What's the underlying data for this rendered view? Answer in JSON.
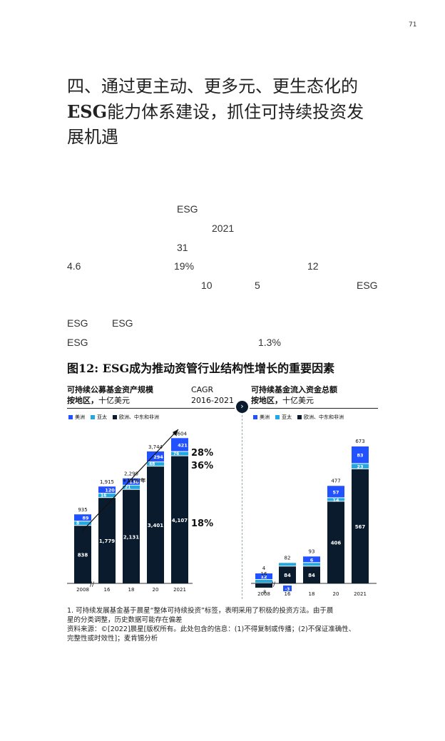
{
  "page_number": "71",
  "heading": {
    "line1": "四、通过更主动、更多元、更生态化的",
    "line2_bold": "ESG",
    "line2_rest": "能力体系建设，抓住可持续投资发",
    "line3": "展机遇"
  },
  "body_fragments": [
    "ESG",
    "2021",
    "31",
    "4.6",
    "19%",
    "12",
    "10",
    "5",
    "ESG",
    "ESG",
    "ESG",
    "ESG",
    "1.3%"
  ],
  "figure_title": "图12: ESG成为推动资管行业结构性增长的重要因素",
  "colors": {
    "americas": "#2251ff",
    "apac": "#23a9e1",
    "europe": "#0b1b2e"
  },
  "chart_data": [
    {
      "type": "bar",
      "stacked": true,
      "title_bold": "可持续公募基金资产规模",
      "title_bold2": "按地区，",
      "title_rest": "十亿美元",
      "cagr_label": "CAGR",
      "cagr_period": "2016-2021",
      "categories": [
        "2008",
        "16",
        "18",
        "20",
        "2021"
      ],
      "series": [
        {
          "name": "美洲",
          "values": [
            89,
            120,
            138,
            294,
            421
          ]
        },
        {
          "name": "亚太",
          "values": [
            8,
            16,
            21,
            48,
            76
          ]
        },
        {
          "name": "欧洲、中东和非洲",
          "values": [
            838,
            1779,
            2131,
            3401,
            4107
          ]
        }
      ],
      "totals": [
        935,
        1915,
        2290,
        3744,
        4604
      ],
      "labels": {
        "americas": [
          "89",
          "120",
          "138",
          "294",
          "421"
        ],
        "apac": [
          "8",
          "16",
          "21",
          "48",
          "76"
        ],
        "europe": [
          "838",
          "1,779",
          "2,131",
          "3,401",
          "4,107"
        ],
        "totals": [
          "935",
          "1,915",
          "2,290",
          "3,744",
          "4,604"
        ]
      },
      "cagr": [
        {
          "series": "美洲",
          "value": "28%"
        },
        {
          "series": "亚太",
          "value": "36%"
        },
        {
          "series": "欧洲、中东和非洲",
          "value": "18%"
        }
      ],
      "annotation": "+19%/年",
      "ylim": [
        0,
        5000
      ]
    },
    {
      "type": "bar",
      "stacked": true,
      "title_bold": "可持续基金流入资金总额",
      "title_bold2": "按地区，",
      "title_rest": "十亿美元",
      "categories": [
        "2008",
        "16",
        "18",
        "20",
        "2021"
      ],
      "series": [
        {
          "name": "美洲",
          "values": [
            12,
            -3,
            6,
            57,
            83
          ]
        },
        {
          "name": "亚太",
          "values": [
            0,
            1,
            3,
            14,
            23
          ]
        },
        {
          "name": "欧洲、中东和非洲",
          "values": [
            -8,
            84,
            84,
            406,
            567
          ]
        }
      ],
      "totals": [
        4,
        82,
        93,
        477,
        673
      ],
      "labels": {
        "americas": [
          "12",
          "-3",
          "6",
          "57",
          "83"
        ],
        "apac": [
          "0",
          "1",
          "3",
          "14",
          "23"
        ],
        "europe": [
          "-8",
          "84",
          "84",
          "406",
          "567"
        ],
        "totals": [
          "4",
          "82",
          "93",
          "477",
          "673"
        ],
        "extra": "16"
      },
      "ylim": [
        -20,
        700
      ]
    }
  ],
  "legend": [
    "美洲",
    "亚太",
    "欧洲、中东和非洲"
  ],
  "footnote": {
    "line1": "1.   可持续发展基金基于晨星“整体可持续投资”标签，表明采用了积极的投资方法。由于晨",
    "line2": "      星的分类调整，历史数据可能存在偏差",
    "line3": "资料来源：©[2022]晨星[版权所有。此处包含的信息：(1)不得复制或传播；(2)不保证准确性、",
    "line4": "完整性或时效性]；麦肯锡分析"
  }
}
